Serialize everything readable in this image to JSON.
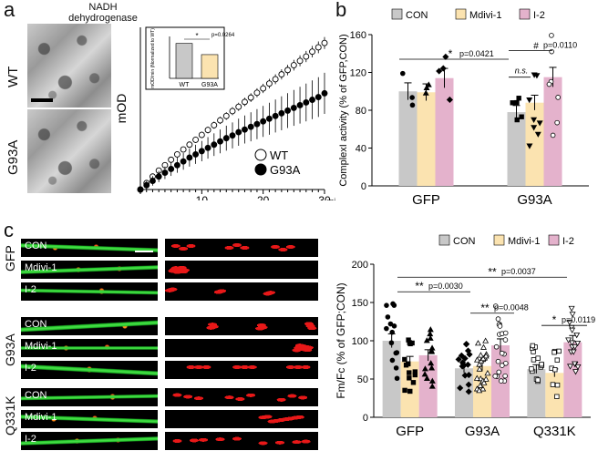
{
  "panel_a": {
    "letter": "a",
    "image_title_line1": "NADH",
    "image_title_line2": "dehydrogenase",
    "row_labels": [
      "WT",
      "G93A"
    ]
  },
  "panel_b": {
    "letter": "b"
  },
  "panel_c": {
    "letter": "c",
    "group_labels": [
      "GFP",
      "G93A",
      "Q331K"
    ],
    "row_labels": [
      "CON",
      "Mdivi-1",
      "I-2",
      "CON",
      "Mdivi-1",
      "I-2",
      "CON",
      "Mdivi-1",
      "I-2"
    ]
  },
  "colors": {
    "CON": "#c8c8c8",
    "Mdivi-1": "#fbe3b0",
    "I-2": "#e4b2cc",
    "wt_marker": "#ffffff",
    "g93a_marker": "#000000"
  },
  "chart_data": [
    {
      "id": "a-line",
      "type": "scatter",
      "title": "",
      "xlabel": "min",
      "ylabel": "mOD",
      "xlim": [
        0,
        30
      ],
      "x_ticks": [
        "10",
        "20",
        "30"
      ],
      "legend": [
        "WT",
        "G93A"
      ],
      "legend_position": "bottom-right",
      "series": [
        {
          "name": "WT",
          "x": [
            0,
            1,
            2,
            3,
            4,
            5,
            6,
            7,
            8,
            9,
            10,
            11,
            12,
            13,
            14,
            15,
            16,
            17,
            18,
            19,
            20,
            21,
            22,
            23,
            24,
            25,
            26,
            27,
            28,
            29,
            30
          ],
          "values": [
            0,
            1.2,
            2.4,
            3.5,
            4.5,
            5.5,
            6.5,
            7.4,
            8.3,
            9.2,
            10.1,
            11,
            11.9,
            12.8,
            13.6,
            14.5,
            15.3,
            16.2,
            17,
            17.9,
            18.7,
            19.6,
            20.4,
            21.3,
            22.1,
            23,
            23.8,
            24.6,
            25.5,
            26.3,
            27.1
          ]
        },
        {
          "name": "G93A",
          "x": [
            0,
            1,
            2,
            3,
            4,
            5,
            6,
            7,
            8,
            9,
            10,
            11,
            12,
            13,
            14,
            15,
            16,
            17,
            18,
            19,
            20,
            21,
            22,
            23,
            24,
            25,
            26,
            27,
            28,
            29,
            30
          ],
          "values": [
            0,
            0.8,
            1.6,
            2.4,
            3.1,
            3.8,
            4.5,
            5.2,
            5.9,
            6.5,
            7.1,
            7.7,
            8.3,
            8.9,
            9.5,
            10,
            10.6,
            11.1,
            11.6,
            12.1,
            12.6,
            13.1,
            13.6,
            14.1,
            14.6,
            15.1,
            15.6,
            16.1,
            16.6,
            17.1,
            17.8
          ]
        }
      ]
    },
    {
      "id": "a-inset",
      "type": "bar",
      "ylabel": "mOD/min (Normalized to WT)",
      "categories": [
        "WT",
        "G93A"
      ],
      "values": [
        100,
        68
      ],
      "significance": "*",
      "p_text": "p=0.0264"
    },
    {
      "id": "b",
      "type": "bar",
      "title": "",
      "ylabel": "ComplexI activity (% of GFP,CON)",
      "ylim": [
        0,
        160
      ],
      "y_ticks": [
        "0",
        "40",
        "80",
        "120",
        "160"
      ],
      "groups": [
        "GFP",
        "G93A"
      ],
      "legend": [
        "CON",
        "Mdivi-1",
        "I-2"
      ],
      "legend_position": "top",
      "series": [
        {
          "name": "CON",
          "values": [
            100,
            78
          ]
        },
        {
          "name": "Mdivi-1",
          "values": [
            99,
            88
          ]
        },
        {
          "name": "I-2",
          "values": [
            114,
            115
          ]
        }
      ],
      "annotations": [
        {
          "mark": "*",
          "p_text": "p=0.0421"
        },
        {
          "mark": "#",
          "p_text": "p=0.0110"
        },
        {
          "mark": "n.s.",
          "p_text": ""
        }
      ]
    },
    {
      "id": "c",
      "type": "bar",
      "title": "",
      "ylabel": "Fm/Fc (% of GFP;CON)",
      "ylim": [
        0,
        200
      ],
      "y_ticks": [
        "0",
        "50",
        "100",
        "150",
        "200"
      ],
      "groups": [
        "GFP",
        "G93A",
        "Q331K"
      ],
      "legend": [
        "CON",
        "Mdivi-1",
        "I-2"
      ],
      "legend_position": "top",
      "series": [
        {
          "name": "CON",
          "values": [
            100,
            64,
            63
          ]
        },
        {
          "name": "Mdivi-1",
          "values": [
            73,
            67,
            58
          ]
        },
        {
          "name": "I-2",
          "values": [
            81,
            94,
            98
          ]
        }
      ],
      "annotations": [
        {
          "mark": "**",
          "p_text": "p=0.0037"
        },
        {
          "mark": "**",
          "p_text": "p=0.0030"
        },
        {
          "mark": "**",
          "p_text": "p=0.0048"
        },
        {
          "mark": "*",
          "p_text": "p=0.0119"
        }
      ]
    }
  ]
}
